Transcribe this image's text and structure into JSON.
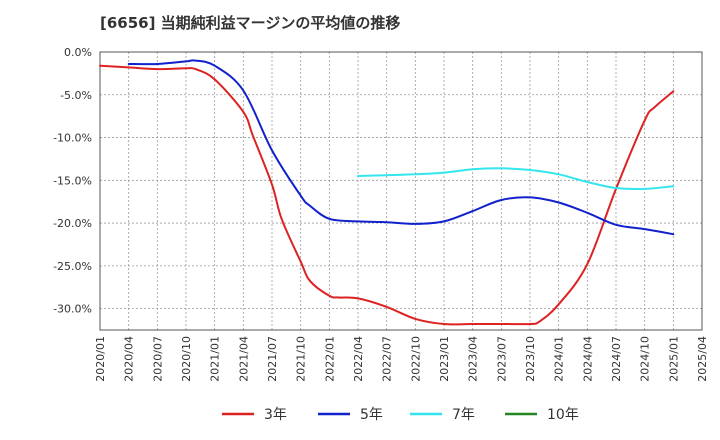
{
  "chart_data": {
    "type": "line",
    "title": "[6656]  当期純利益マージンの平均値の推移",
    "xlabel": "",
    "ylabel": "",
    "x_ticks": [
      "2020/01",
      "2020/04",
      "2020/07",
      "2020/10",
      "2021/01",
      "2021/04",
      "2021/07",
      "2021/10",
      "2022/01",
      "2022/04",
      "2022/07",
      "2022/10",
      "2023/01",
      "2023/04",
      "2023/07",
      "2023/10",
      "2024/01",
      "2024/04",
      "2024/07",
      "2024/10",
      "2025/01",
      "2025/04"
    ],
    "y_ticks": [
      "0.0%",
      "-5.0%",
      "-10.0%",
      "-15.0%",
      "-20.0%",
      "-25.0%",
      "-30.0%"
    ],
    "ylim": [
      -32.5,
      0
    ],
    "grid": true,
    "legend_position": "bottom",
    "series": [
      {
        "name": "3年",
        "color": "#dd2222",
        "x": [
          "2020/01",
          "2020/04",
          "2020/07",
          "2020/10",
          "2020/11",
          "2021/01",
          "2021/04",
          "2021/05",
          "2021/07",
          "2021/08",
          "2021/10",
          "2021/11",
          "2022/01",
          "2022/02",
          "2022/04",
          "2022/07",
          "2022/10",
          "2023/01",
          "2023/04",
          "2023/07",
          "2023/10",
          "2023/11",
          "2024/01",
          "2024/04",
          "2024/07",
          "2024/10",
          "2024/11",
          "2025/01"
        ],
        "values": [
          -1.6,
          -1.8,
          -2.0,
          -1.9,
          -2.0,
          -3.2,
          -7.0,
          -9.8,
          -15.5,
          -19.5,
          -24.5,
          -26.8,
          -28.5,
          -28.7,
          -28.8,
          -29.8,
          -31.2,
          -31.8,
          -31.8,
          -31.8,
          -31.8,
          -31.5,
          -29.5,
          -24.8,
          -16.0,
          -8.0,
          -6.5,
          -4.6
        ]
      },
      {
        "name": "5年",
        "color": "#1122cc",
        "x": [
          "2020/04",
          "2020/07",
          "2020/10",
          "2020/11",
          "2021/01",
          "2021/04",
          "2021/07",
          "2021/10",
          "2021/11",
          "2022/01",
          "2022/04",
          "2022/07",
          "2022/10",
          "2023/01",
          "2023/04",
          "2023/07",
          "2023/10",
          "2024/01",
          "2024/04",
          "2024/07",
          "2024/10",
          "2025/01"
        ],
        "values": [
          -1.4,
          -1.4,
          -1.1,
          -1.0,
          -1.6,
          -4.5,
          -11.5,
          -16.8,
          -18.0,
          -19.5,
          -19.8,
          -19.9,
          -20.1,
          -19.8,
          -18.6,
          -17.3,
          -17.0,
          -17.6,
          -18.8,
          -20.2,
          -20.7,
          -21.3
        ]
      },
      {
        "name": "7年",
        "color": "#33e5ee",
        "x": [
          "2022/04",
          "2022/07",
          "2022/10",
          "2023/01",
          "2023/04",
          "2023/07",
          "2023/10",
          "2024/01",
          "2024/04",
          "2024/07",
          "2024/10",
          "2025/01"
        ],
        "values": [
          -14.5,
          -14.4,
          -14.3,
          -14.1,
          -13.7,
          -13.6,
          -13.8,
          -14.3,
          -15.2,
          -15.9,
          -16.0,
          -15.7
        ]
      },
      {
        "name": "10年",
        "color": "#228822",
        "x": [],
        "values": []
      }
    ]
  }
}
